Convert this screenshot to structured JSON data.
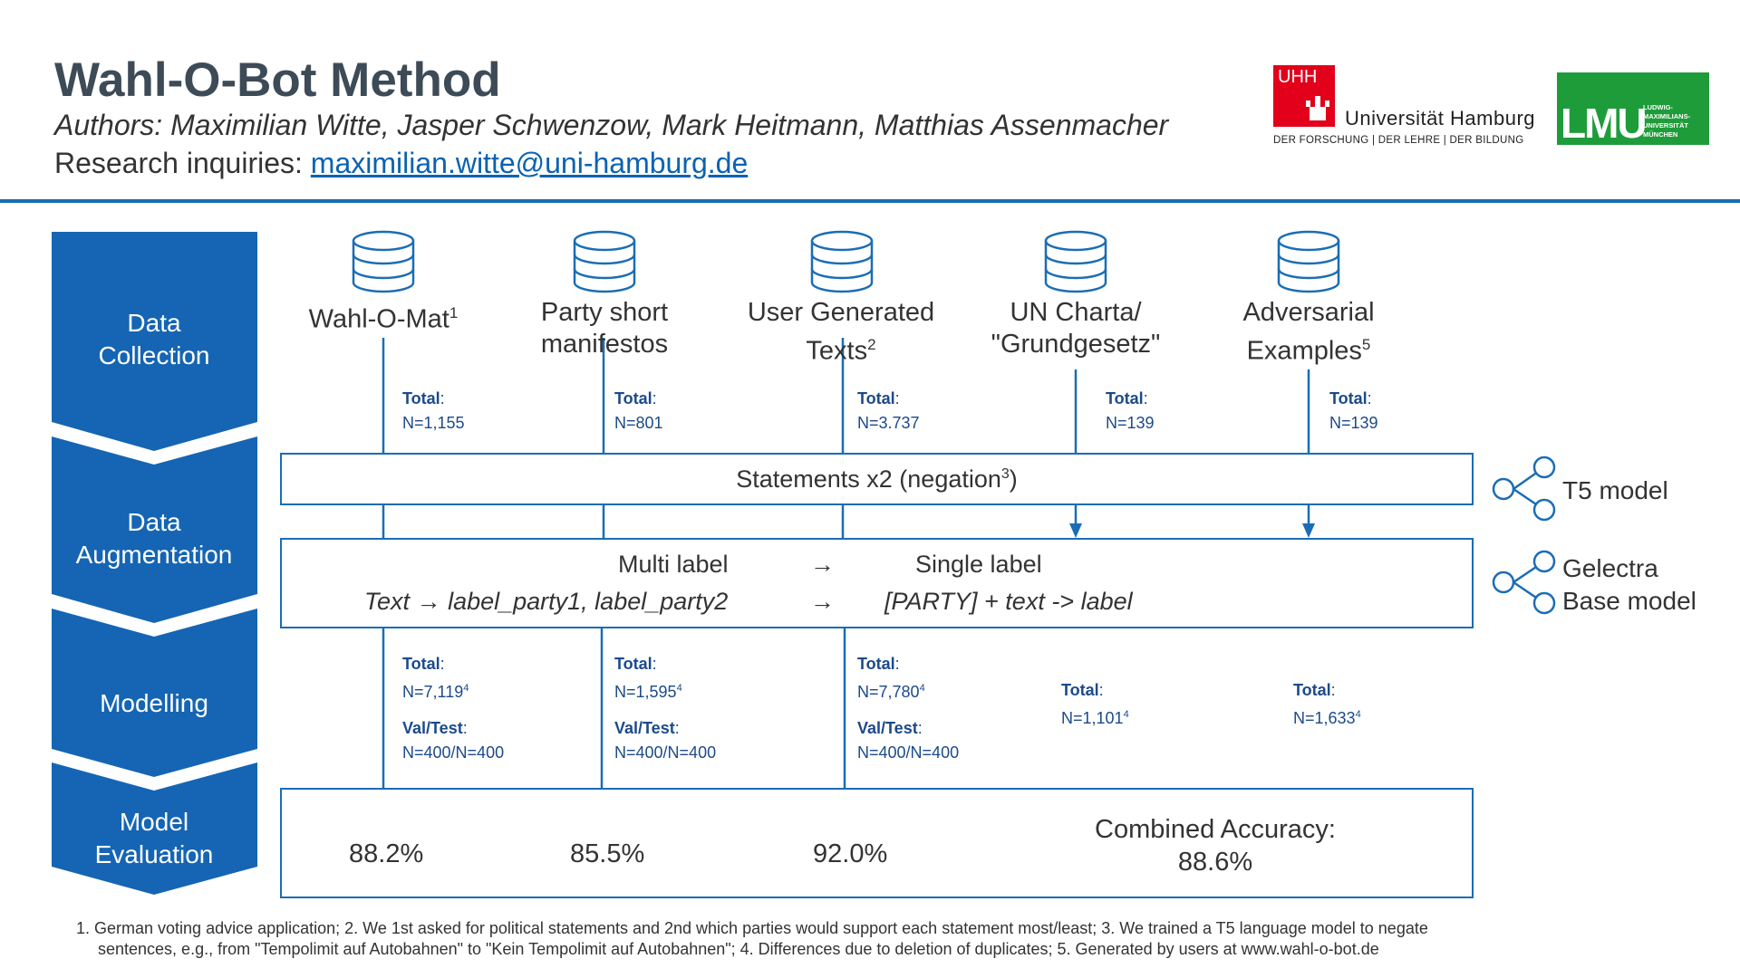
{
  "header": {
    "title": "Wahl-O-Bot Method",
    "authors": "Authors: Maximilian Witte, Jasper Schwenzow, Mark Heitmann, Matthias Assenmacher",
    "inquiries_label": "Research inquiries: ",
    "inquiries_email": "maximilian.witte@uni-hamburg.de"
  },
  "logos": {
    "uhh_mark": "UHH",
    "uhh_name": "Universität Hamburg",
    "uhh_tagline": "DER FORSCHUNG | DER LEHRE | DER BILDUNG",
    "lmu_mark": "LMU",
    "lmu_name_line1": "LUDWIG-",
    "lmu_name_line2": "MAXIMILIANS-",
    "lmu_name_line3": "UNIVERSITÄT",
    "lmu_name_line4": "MÜNCHEN"
  },
  "stages": [
    {
      "line1": "Data",
      "line2": "Collection"
    },
    {
      "line1": "Data",
      "line2": "Augmentation"
    },
    {
      "line1": "Modelling",
      "line2": ""
    },
    {
      "line1": "Model",
      "line2": "Evaluation"
    }
  ],
  "sources": [
    {
      "line1": "Wahl-O-Mat",
      "sup": "1",
      "line2": "",
      "total_label": "Total",
      "total_value": "N=1,155"
    },
    {
      "line1": "Party short",
      "sup": "",
      "line2": "manifestos",
      "total_label": "Total",
      "total_value": "N=801"
    },
    {
      "line1": "User Generated",
      "sup": "2",
      "line2": "Texts",
      "total_label": "Total",
      "total_value": "N=3.737"
    },
    {
      "line1": "UN Charta/",
      "sup": "",
      "line2": "\"Grundgesetz\"",
      "total_label": "Total",
      "total_value": "N=139"
    },
    {
      "line1": "Adversarial",
      "sup": "5",
      "line2": "Examples",
      "total_label": "Total",
      "total_value": "N=139"
    }
  ],
  "augmentation": {
    "statements": "Statements x2 (negation",
    "statements_sup": "3",
    "statements_end": ")",
    "multi_label": "Multi label",
    "single_label": "Single label",
    "arrow": "→",
    "text_to": "Text",
    "multi_formula": "label_party1, label_party2",
    "single_formula": "[PARTY] + text -> label"
  },
  "models": {
    "t5": "T5 model",
    "gelectra_line1": "Gelectra",
    "gelectra_line2": "Base model"
  },
  "modelling": [
    {
      "total_label": "Total",
      "total_value": "N=7,119",
      "sup": "4",
      "valtest_label": "Val/Test",
      "valtest_value": "N=400/N=400"
    },
    {
      "total_label": "Total",
      "total_value": "N=1,595",
      "sup": "4",
      "valtest_label": "Val/Test",
      "valtest_value": "N=400/N=400"
    },
    {
      "total_label": "Total",
      "total_value": "N=7,780",
      "sup": "4",
      "valtest_label": "Val/Test",
      "valtest_value": "N=400/N=400"
    },
    {
      "total_label": "Total",
      "total_value": "N=1,101",
      "sup": "4"
    },
    {
      "total_label": "Total",
      "total_value": "N=1,633",
      "sup": "4"
    }
  ],
  "evaluation": {
    "acc1": "88.2%",
    "acc2": "85.5%",
    "acc3": "92.0%",
    "combined_label": "Combined Accuracy:",
    "combined_value": "88.6%"
  },
  "footnote": {
    "line1": "1. German voting advice application; 2.  We 1st asked for political statements and 2nd which parties would support each statement most/least; 3. We trained a T5 language model to negate",
    "line2": "sentences, e.g., from \"Tempolimit auf Autobahnen\" to \"Kein Tempolimit auf Autobahnen\"; 4. Differences due to deletion of duplicates; 5. Generated by users at www.wahl-o-bot.de"
  },
  "colors": {
    "accent": "#1a6db5",
    "chevron": "#1565b4",
    "count_text": "#1c4a8a",
    "uhh_red": "#e2001a",
    "lmu_green": "#1f9c3a"
  },
  "icons": [
    "database-icon",
    "share-nodes-icon",
    "arrow-down-icon"
  ]
}
